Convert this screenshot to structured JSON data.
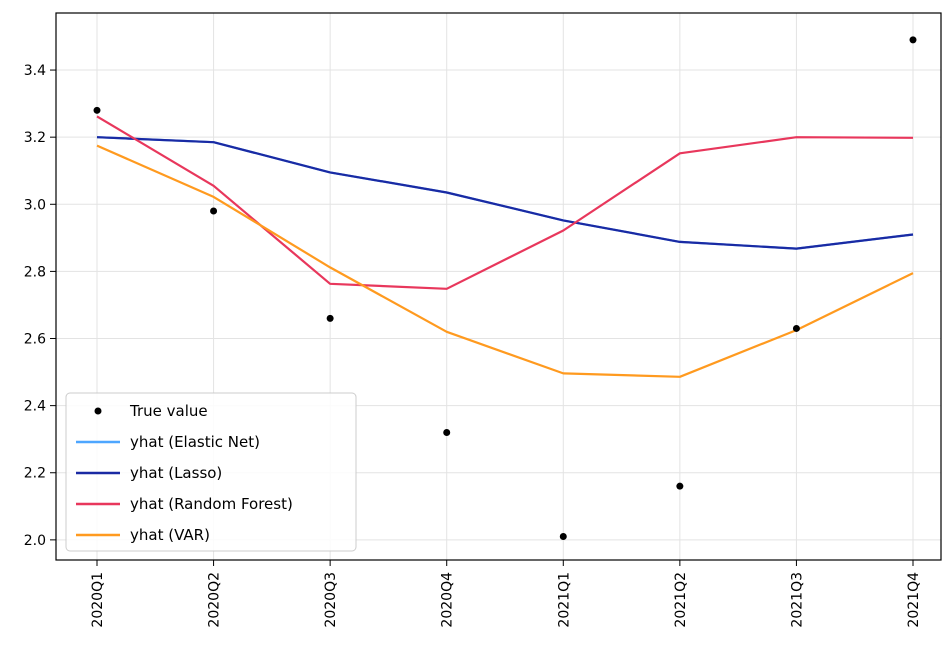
{
  "chart_data": {
    "type": "line",
    "categories": [
      "2020Q1",
      "2020Q2",
      "2020Q3",
      "2020Q4",
      "2021Q1",
      "2021Q2",
      "2021Q3",
      "2021Q4"
    ],
    "series": [
      {
        "name": "True value",
        "kind": "scatter",
        "color": "#000000",
        "values": [
          3.28,
          2.98,
          2.66,
          2.32,
          2.01,
          2.16,
          2.63,
          3.49
        ]
      },
      {
        "name": "yhat (Elastic Net)",
        "kind": "line",
        "color": "#4da6ff",
        "values": [
          3.2,
          3.185,
          3.095,
          3.035,
          2.952,
          2.888,
          2.868,
          2.91
        ]
      },
      {
        "name": "yhat (Lasso)",
        "kind": "line",
        "color": "#1a2aa3",
        "values": [
          3.2,
          3.185,
          3.095,
          3.035,
          2.952,
          2.888,
          2.868,
          2.91
        ]
      },
      {
        "name": "yhat (Random Forest)",
        "kind": "line",
        "color": "#e8375c",
        "values": [
          3.262,
          3.055,
          2.763,
          2.748,
          2.922,
          3.152,
          3.2,
          3.198
        ]
      },
      {
        "name": "yhat (VAR)",
        "kind": "line",
        "color": "#ff9a1f",
        "values": [
          3.175,
          3.022,
          2.812,
          2.62,
          2.496,
          2.486,
          2.625,
          2.795
        ]
      }
    ],
    "yticks": [
      "2.0",
      "2.2",
      "2.4",
      "2.6",
      "2.8",
      "3.0",
      "3.2",
      "3.4"
    ],
    "ylim": [
      1.94,
      3.57
    ],
    "grid": true,
    "legend_position": "lower-left"
  }
}
